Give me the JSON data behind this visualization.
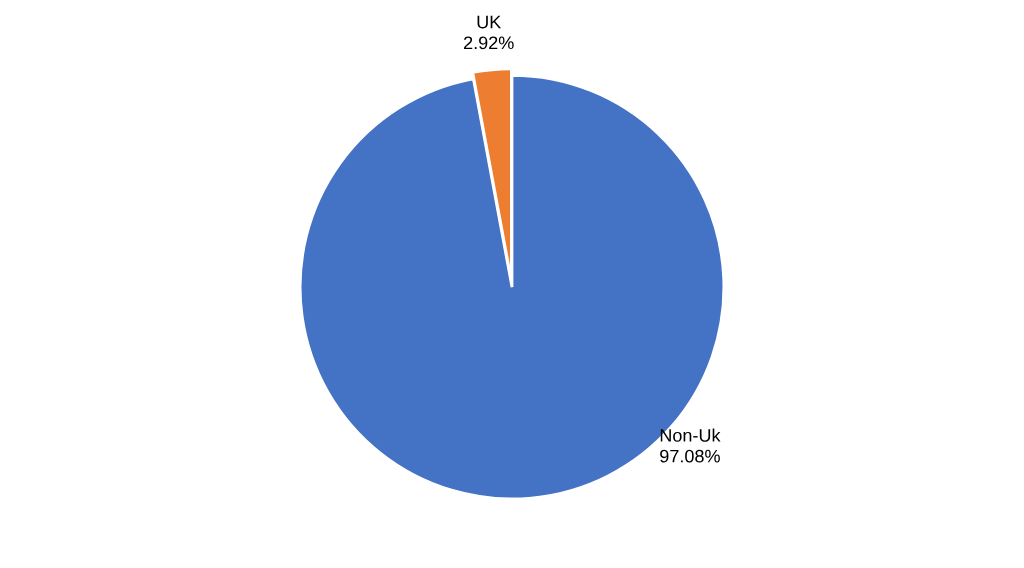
{
  "chart_data": {
    "type": "pie",
    "categories": [
      "Non-Uk",
      "UK"
    ],
    "values": [
      97.08,
      2.92
    ],
    "colors": [
      "#4472c4",
      "#ed7d31"
    ],
    "value_labels": [
      "97.08%",
      "2.92%"
    ]
  }
}
